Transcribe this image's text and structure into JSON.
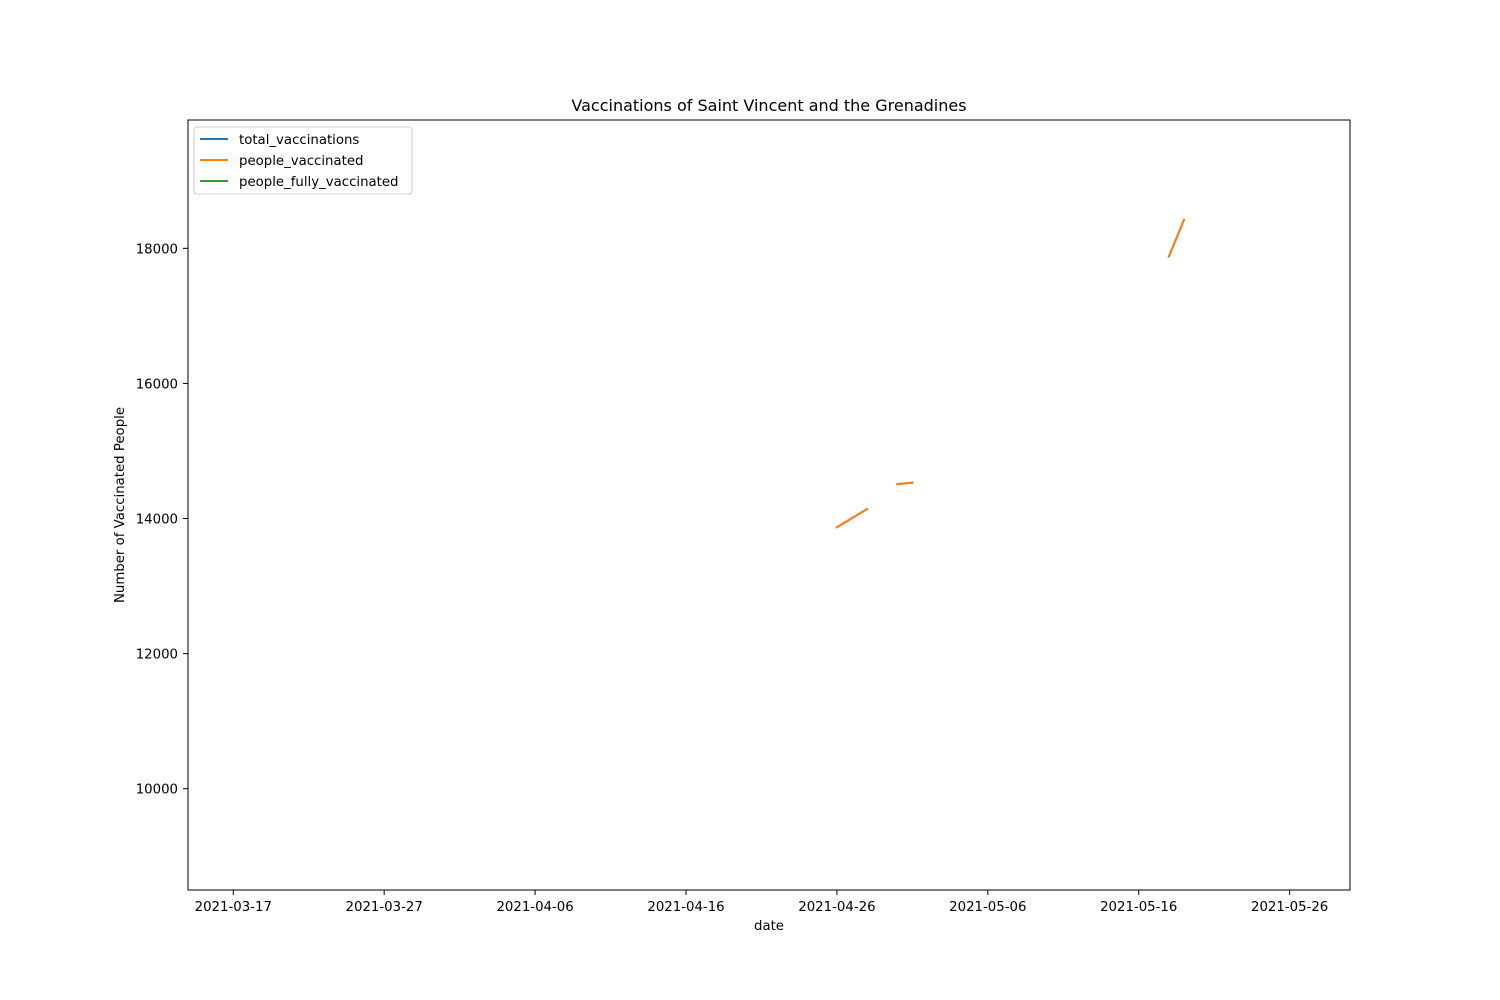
{
  "chart_data": {
    "type": "line",
    "title": "Vaccinations of Saint Vincent and the Grenadines",
    "xlabel": "date",
    "ylabel": "Number of Vaccinated People",
    "xlim": [
      "2021-03-14",
      "2021-05-30"
    ],
    "ylim": [
      8500,
      19900
    ],
    "x_ticks": [
      "2021-03-17",
      "2021-03-27",
      "2021-04-06",
      "2021-04-16",
      "2021-04-26",
      "2021-05-06",
      "2021-05-16",
      "2021-05-26"
    ],
    "y_ticks": [
      10000,
      12000,
      14000,
      16000,
      18000
    ],
    "grid": false,
    "legend_position": "upper-left",
    "series": [
      {
        "name": "total_vaccinations",
        "color": "#1f77b4",
        "points": [
          {
            "x": "2021-04-26",
            "y": 13870
          },
          {
            "x": "2021-04-28",
            "y": 14140
          },
          {
            "x": null,
            "y": null
          },
          {
            "x": "2021-04-30",
            "y": 14510
          },
          {
            "x": "2021-05-01",
            "y": 14530
          },
          {
            "x": null,
            "y": null
          },
          {
            "x": "2021-05-18",
            "y": 17880
          },
          {
            "x": "2021-05-19",
            "y": 18420
          }
        ]
      },
      {
        "name": "people_vaccinated",
        "color": "#ff7f0e",
        "points": [
          {
            "x": "2021-04-26",
            "y": 13870
          },
          {
            "x": "2021-04-28",
            "y": 14140
          },
          {
            "x": null,
            "y": null
          },
          {
            "x": "2021-04-30",
            "y": 14510
          },
          {
            "x": "2021-05-01",
            "y": 14530
          },
          {
            "x": null,
            "y": null
          },
          {
            "x": "2021-05-18",
            "y": 17880
          },
          {
            "x": "2021-05-19",
            "y": 18420
          }
        ]
      },
      {
        "name": "people_fully_vaccinated",
        "color": "#2ca02c",
        "points": []
      }
    ]
  }
}
